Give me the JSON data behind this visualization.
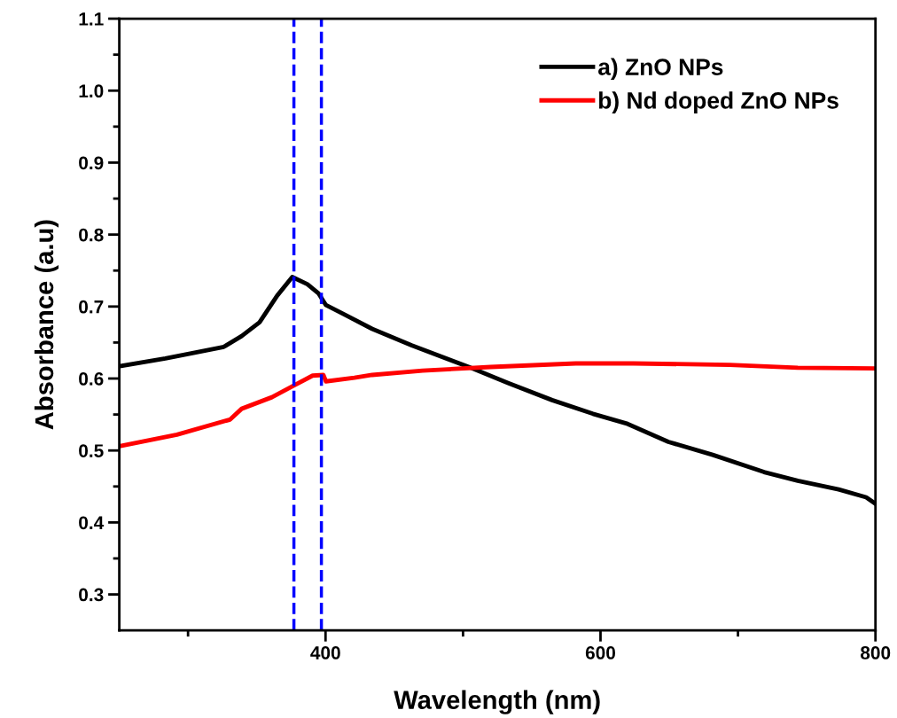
{
  "chart_data": {
    "type": "line",
    "xlabel": "Wavelength (nm)",
    "ylabel": "Absorbance (a.u)",
    "xlim": [
      250,
      800
    ],
    "xticks": [
      {
        "value": 300,
        "label": null
      },
      400,
      {
        "value": 500,
        "label": null
      },
      600,
      {
        "value": 700,
        "label": null
      },
      800
    ],
    "ylim": [
      0.25,
      1.1
    ],
    "yticks": [
      0.3,
      {
        "value": 0.35,
        "label": null
      },
      0.4,
      {
        "value": 0.45,
        "label": null
      },
      0.5,
      {
        "value": 0.55,
        "label": null
      },
      0.6,
      {
        "value": 0.65,
        "label": null
      },
      0.7,
      {
        "value": 0.75,
        "label": null
      },
      0.8,
      {
        "value": 0.85,
        "label": null
      },
      0.9,
      {
        "value": 0.95,
        "label": null
      },
      {
        "value": 1.0,
        "label": "1.0"
      },
      {
        "value": 1.05,
        "label": null
      },
      1.1
    ],
    "grid": false,
    "legend": "top right",
    "line_style": "solid",
    "marker": "none",
    "series": [
      {
        "name": "a) ZnO NPs",
        "color": "#000000",
        "x": [
          250,
          283.5,
          304.8,
          326,
          339,
          352,
          364.8,
          375.8,
          386.8,
          395,
          400.3,
          412.6,
          433.9,
          462.9,
          505.5,
          532.6,
          564.8,
          594.5,
          619.7,
          649.4,
          681.6,
          719,
          743.5,
          773.2,
          793.2,
          800
        ],
        "values": [
          0.617,
          0.628,
          0.636,
          0.644,
          0.659,
          0.678,
          0.715,
          0.741,
          0.731,
          0.718,
          0.702,
          0.69,
          0.669,
          0.646,
          0.615,
          0.594,
          0.57,
          0.551,
          0.537,
          0.512,
          0.494,
          0.47,
          0.458,
          0.446,
          0.435,
          0.426
        ]
      },
      {
        "name": "b) Nd doped ZnO NPs",
        "color": "#ff0000",
        "x": [
          250,
          291.9,
          330.6,
          339,
          361,
          375.8,
          390.6,
          398.4,
          400.3,
          421,
          433.9,
          470.6,
          520,
          582,
          624,
          693.9,
          743.5,
          800
        ],
        "values": [
          0.506,
          0.522,
          0.543,
          0.558,
          0.574,
          0.589,
          0.604,
          0.605,
          0.596,
          0.601,
          0.605,
          0.611,
          0.616,
          0.621,
          0.621,
          0.619,
          0.615,
          0.614
        ]
      }
    ],
    "ref_lines": [
      {
        "axis": "x",
        "value": 377,
        "color": "#0000ff",
        "line_style": "dashed"
      },
      {
        "axis": "x",
        "value": 397,
        "color": "#0000ff",
        "line_style": "dashed"
      }
    ]
  }
}
